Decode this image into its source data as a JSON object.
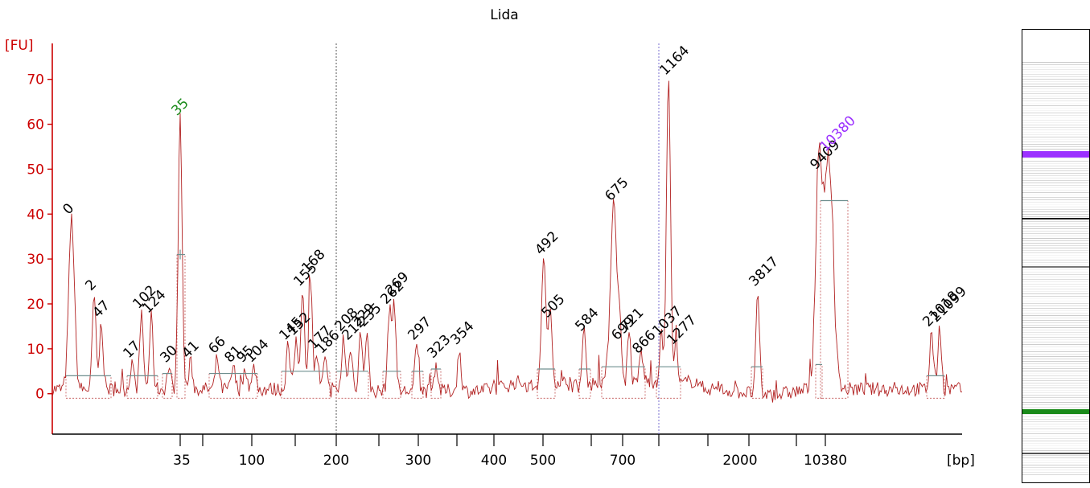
{
  "chart_data": {
    "type": "line",
    "title": "Lida",
    "ylabel": "[FU]",
    "xlabel": "[bp]",
    "ylim": [
      -9,
      78
    ],
    "y_ticks": [
      0,
      10,
      20,
      30,
      40,
      50,
      60,
      70
    ],
    "x_tick_labels": [
      "35",
      "100",
      "200",
      "300",
      "400",
      "500",
      "700",
      "2000",
      "10380"
    ],
    "lower_marker": {
      "label": "35",
      "size_bp": 35,
      "fu": 60,
      "color": "#1a8a1a"
    },
    "upper_marker": {
      "label": "10380",
      "size_bp": 10380,
      "fu": 53,
      "color": "#9b30ff"
    },
    "peaks": [
      {
        "label": "0",
        "fu": 38
      },
      {
        "label": "2",
        "fu": 21
      },
      {
        "label": "47",
        "fu": 15
      },
      {
        "label": "17",
        "fu": 6
      },
      {
        "label": "102",
        "fu": 17
      },
      {
        "label": "124",
        "fu": 16
      },
      {
        "label": "30",
        "fu": 5
      },
      {
        "label": "41",
        "fu": 6
      },
      {
        "label": "66",
        "fu": 7
      },
      {
        "label": "81",
        "fu": 5
      },
      {
        "label": "95",
        "fu": 5
      },
      {
        "label": "104",
        "fu": 5
      },
      {
        "label": "145",
        "fu": 10
      },
      {
        "label": "152",
        "fu": 11
      },
      {
        "label": "155",
        "fu": 22
      },
      {
        "label": "168",
        "fu": 25
      },
      {
        "label": "177",
        "fu": 8
      },
      {
        "label": "186",
        "fu": 7
      },
      {
        "label": "208",
        "fu": 12
      },
      {
        "label": "212",
        "fu": 10
      },
      {
        "label": "229",
        "fu": 13
      },
      {
        "label": "235",
        "fu": 13
      },
      {
        "label": "262",
        "fu": 18
      },
      {
        "label": "269",
        "fu": 20
      },
      {
        "label": "297",
        "fu": 10
      },
      {
        "label": "323",
        "fu": 6
      },
      {
        "label": "354",
        "fu": 9
      },
      {
        "label": "492",
        "fu": 29
      },
      {
        "label": "505",
        "fu": 15
      },
      {
        "label": "584",
        "fu": 12
      },
      {
        "label": "675",
        "fu": 41
      },
      {
        "label": "699",
        "fu": 10
      },
      {
        "label": "721",
        "fu": 12
      },
      {
        "label": "866",
        "fu": 7
      },
      {
        "label": "1037",
        "fu": 11
      },
      {
        "label": "1277",
        "fu": 9
      },
      {
        "label": "1164",
        "fu": 69
      },
      {
        "label": "3817",
        "fu": 22
      },
      {
        "label": "9409",
        "fu": 48
      },
      {
        "label": "21018",
        "fu": 13
      },
      {
        "label": "21099",
        "fu": 14
      }
    ]
  },
  "gel": {
    "upper_band_color": "#9b30ff",
    "lower_band_color": "#1a8a1a"
  }
}
